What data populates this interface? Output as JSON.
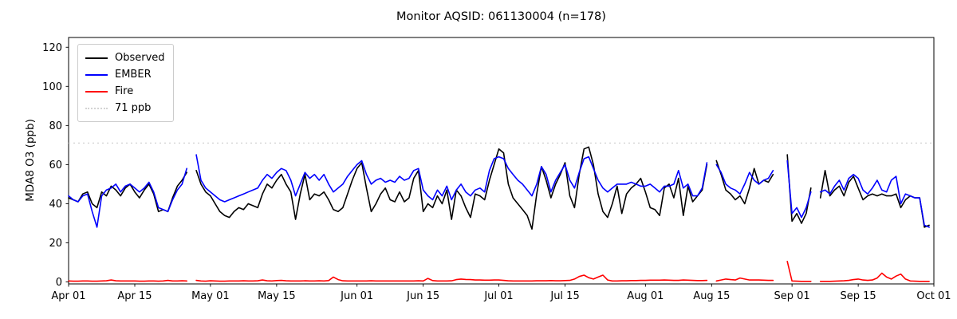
{
  "chart_data": {
    "type": "line",
    "title": "Monitor AQSID: 061130004 (n=178)",
    "ylabel": "MDA8 O3 (ppb)",
    "xlabel": "",
    "ylim": [
      -1,
      125
    ],
    "yticks": [
      0,
      20,
      40,
      60,
      80,
      100,
      120
    ],
    "xtick_labels": [
      "Apr 01",
      "Apr 15",
      "May 01",
      "May 15",
      "Jun 01",
      "Jun 15",
      "Jul 01",
      "Jul 15",
      "Aug 01",
      "Aug 15",
      "Sep 01",
      "Sep 15",
      "Oct 01"
    ],
    "xtick_days": [
      0,
      14,
      30,
      44,
      61,
      75,
      91,
      105,
      122,
      136,
      153,
      167,
      183
    ],
    "n_days": 183,
    "date_range": "Apr 01 to Oct 01",
    "n_observations": 178,
    "grid": false,
    "legend_position": "upper left",
    "threshold": {
      "label": "71 ppb",
      "value": 71,
      "color": "#d3d3d3",
      "style": "dotted"
    },
    "series": [
      {
        "name": "Observed",
        "color": "#000000",
        "values": [
          43,
          42,
          41,
          45,
          46,
          40,
          38,
          46,
          44,
          49,
          47,
          44,
          48,
          50,
          46,
          43,
          47,
          50,
          45,
          36,
          37,
          36,
          43,
          49,
          52,
          56,
          null,
          57,
          50,
          46,
          44,
          40,
          36,
          34,
          33,
          36,
          38,
          37,
          40,
          39,
          38,
          45,
          50,
          48,
          52,
          55,
          50,
          46,
          32,
          45,
          55,
          42,
          45,
          44,
          46,
          42,
          37,
          36,
          38,
          45,
          52,
          58,
          61,
          48,
          36,
          40,
          45,
          48,
          42,
          41,
          46,
          41,
          43,
          53,
          57,
          36,
          40,
          38,
          44,
          40,
          47,
          32,
          47,
          44,
          38,
          33,
          45,
          44,
          42,
          52,
          60,
          68,
          66,
          50,
          43,
          40,
          37,
          34,
          27,
          45,
          59,
          52,
          43,
          50,
          55,
          61,
          44,
          38,
          55,
          68,
          69,
          60,
          45,
          36,
          33,
          40,
          49,
          35,
          45,
          48,
          50,
          53,
          46,
          38,
          37,
          34,
          48,
          50,
          43,
          53,
          34,
          49,
          41,
          44,
          47,
          60,
          null,
          62,
          55,
          47,
          45,
          42,
          44,
          40,
          48,
          58,
          50,
          52,
          51,
          55,
          null,
          null,
          65,
          31,
          35,
          30,
          35,
          48,
          null,
          43,
          57,
          44,
          47,
          49,
          44,
          51,
          54,
          48,
          42,
          44,
          45,
          44,
          45,
          44,
          44,
          45,
          38,
          42,
          44,
          43,
          43,
          28,
          29
        ]
      },
      {
        "name": "EMBER",
        "color": "#0000ff",
        "values": [
          44,
          42,
          41,
          44,
          45,
          36,
          28,
          44,
          47,
          48,
          50,
          46,
          49,
          50,
          48,
          46,
          48,
          51,
          46,
          38,
          37,
          36,
          42,
          47,
          50,
          58,
          null,
          65,
          52,
          48,
          46,
          44,
          42,
          41,
          42,
          43,
          44,
          45,
          46,
          47,
          48,
          52,
          55,
          53,
          56,
          58,
          57,
          52,
          44,
          50,
          56,
          53,
          55,
          52,
          55,
          50,
          46,
          48,
          50,
          54,
          57,
          60,
          62,
          55,
          50,
          52,
          53,
          51,
          52,
          51,
          54,
          52,
          53,
          57,
          58,
          47,
          44,
          42,
          47,
          44,
          49,
          42,
          47,
          50,
          46,
          44,
          47,
          48,
          46,
          57,
          63,
          64,
          63,
          58,
          55,
          52,
          50,
          47,
          44,
          50,
          59,
          55,
          46,
          52,
          56,
          60,
          52,
          48,
          56,
          63,
          64,
          58,
          52,
          48,
          46,
          48,
          50,
          50,
          50,
          51,
          50,
          49,
          49,
          50,
          48,
          46,
          49,
          49,
          50,
          57,
          48,
          50,
          44,
          44,
          48,
          61,
          null,
          60,
          56,
          50,
          48,
          47,
          45,
          50,
          56,
          52,
          50,
          52,
          53,
          57,
          null,
          null,
          62,
          35,
          38,
          33,
          38,
          46,
          null,
          46,
          47,
          45,
          49,
          52,
          47,
          53,
          55,
          53,
          47,
          45,
          48,
          52,
          47,
          46,
          52,
          54,
          40,
          45,
          44,
          43,
          43,
          29,
          28
        ]
      },
      {
        "name": "Fire",
        "color": "#ff0000",
        "values": [
          0.5,
          0.4,
          0.4,
          0.5,
          0.5,
          0.4,
          0.4,
          0.5,
          0.6,
          1.0,
          0.6,
          0.5,
          0.5,
          0.5,
          0.5,
          0.4,
          0.4,
          0.5,
          0.5,
          0.4,
          0.5,
          0.8,
          0.5,
          0.5,
          0.6,
          0.5,
          null,
          0.8,
          0.5,
          0.4,
          0.6,
          0.5,
          0.4,
          0.4,
          0.5,
          0.5,
          0.5,
          0.6,
          0.5,
          0.5,
          0.6,
          1.0,
          0.6,
          0.5,
          0.7,
          0.8,
          0.6,
          0.5,
          0.5,
          0.5,
          0.6,
          0.5,
          0.5,
          0.6,
          0.5,
          0.7,
          2.5,
          1.2,
          0.6,
          0.5,
          0.5,
          0.5,
          0.5,
          0.5,
          0.6,
          0.5,
          0.5,
          0.5,
          0.5,
          0.5,
          0.5,
          0.5,
          0.5,
          0.5,
          0.6,
          0.5,
          1.8,
          0.7,
          0.5,
          0.5,
          0.5,
          0.6,
          1.2,
          1.5,
          1.3,
          1.2,
          1.0,
          1.0,
          0.9,
          0.9,
          1.0,
          1.0,
          0.8,
          0.6,
          0.5,
          0.5,
          0.5,
          0.5,
          0.5,
          0.6,
          0.6,
          0.6,
          0.7,
          0.6,
          0.6,
          0.7,
          0.8,
          1.5,
          2.8,
          3.5,
          2.2,
          1.5,
          2.5,
          3.5,
          1.0,
          0.5,
          0.5,
          0.6,
          0.6,
          0.7,
          0.7,
          0.8,
          0.8,
          0.9,
          0.9,
          0.9,
          1.0,
          0.9,
          0.8,
          0.8,
          1.0,
          0.9,
          0.8,
          0.7,
          0.7,
          0.8,
          null,
          0.5,
          1.0,
          1.5,
          1.2,
          1.0,
          2.0,
          1.5,
          1.0,
          1.0,
          1.0,
          0.9,
          0.8,
          0.8,
          null,
          null,
          10.5,
          0.5,
          0.4,
          0.3,
          0.3,
          0.3,
          null,
          0.3,
          0.3,
          0.3,
          0.4,
          0.5,
          0.6,
          0.8,
          1.2,
          1.5,
          1.0,
          0.8,
          1.0,
          2.0,
          4.5,
          2.5,
          1.5,
          3.0,
          4.0,
          1.5,
          0.5,
          0.4,
          0.3,
          0.3,
          0.3
        ]
      }
    ]
  }
}
